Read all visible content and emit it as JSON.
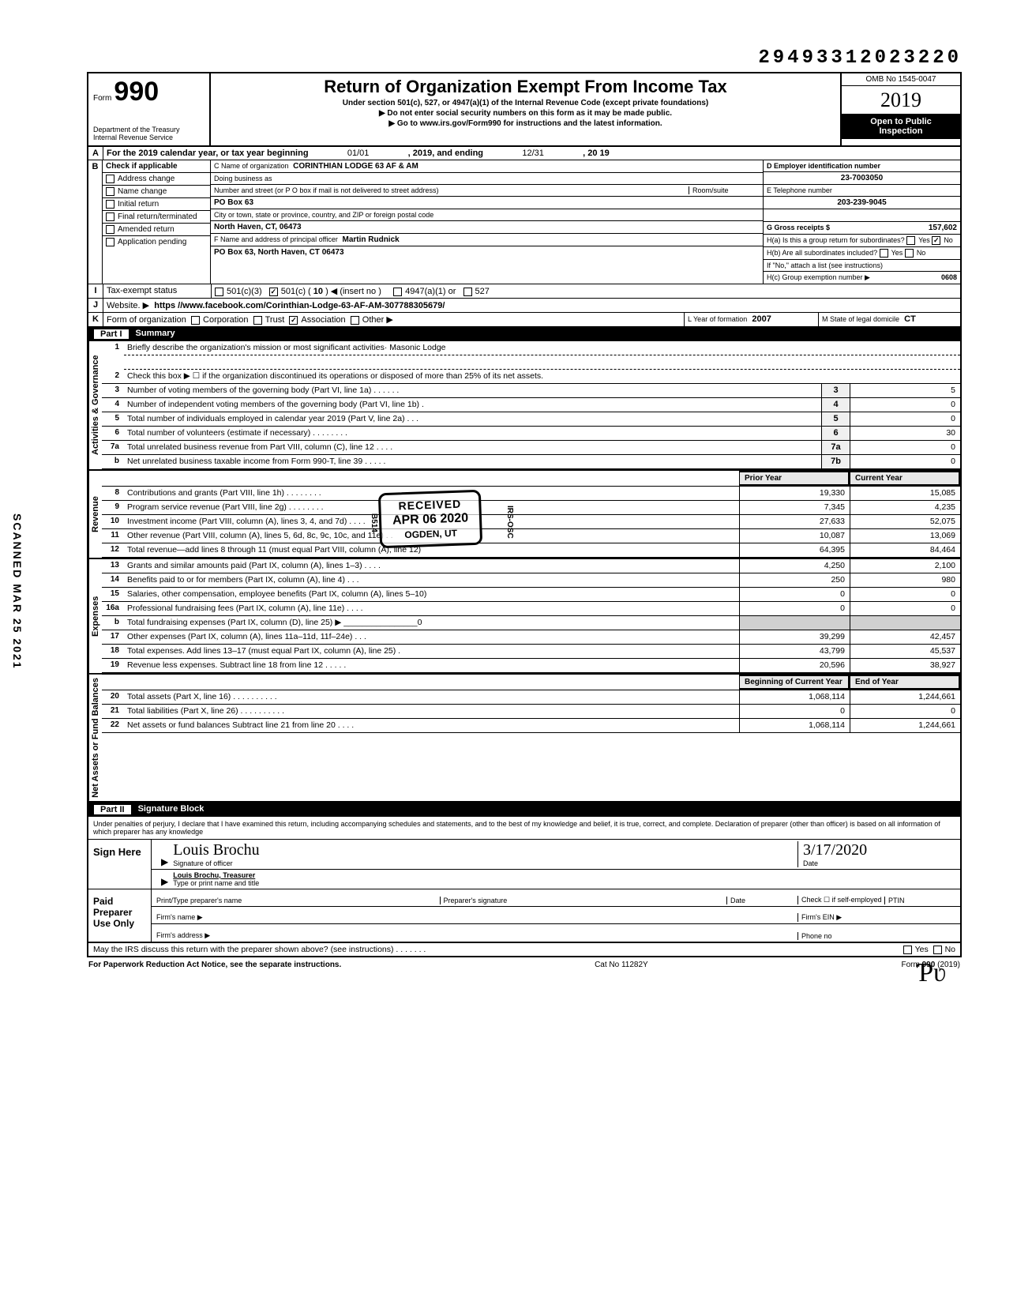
{
  "doc_id": "29493312023220",
  "scanned_stamp": "SCANNED MAR 25 2021",
  "form": {
    "word": "Form",
    "number": "990",
    "dept1": "Department of the Treasury",
    "dept2": "Internal Revenue Service",
    "title": "Return of Organization Exempt From Income Tax",
    "subtitle": "Under section 501(c), 527, or 4947(a)(1) of the Internal Revenue Code (except private foundations)",
    "note1": "▶ Do not enter social security numbers on this form as it may be made public.",
    "note2": "▶ Go to www.irs.gov/Form990 for instructions and the latest information.",
    "omb": "OMB No 1545-0047",
    "year": "2019",
    "open1": "Open to Public",
    "open2": "Inspection"
  },
  "rowA": {
    "label": "A",
    "text": "For the 2019 calendar year, or tax year beginning",
    "begin": "01/01",
    "mid": ", 2019, and ending",
    "end": "12/31",
    "tail": ", 20  19"
  },
  "rowB": {
    "label": "B",
    "hdr": "Check if applicable",
    "opts": [
      "Address change",
      "Name change",
      "Initial return",
      "Final return/terminated",
      "Amended return",
      "Application pending"
    ]
  },
  "blockC": {
    "c_label": "C Name of organization",
    "c_val": "CORINTHIAN LODGE 63 AF & AM",
    "dba": "Doing business as",
    "street_lbl": "Number and street (or P O  box if mail is not delivered to street address)",
    "room_lbl": "Room/suite",
    "street": "PO Box 63",
    "city_lbl": "City or town, state or province, country, and ZIP or foreign postal code",
    "city": "North Haven, CT,  06473",
    "f_lbl": "F Name and address of principal officer",
    "f_name": "Martin Rudnick",
    "f_addr": "PO Box 63, North Haven, CT 06473"
  },
  "blockD": {
    "d_lbl": "D Employer identification number",
    "d_val": "23-7003050",
    "e_lbl": "E Telephone number",
    "e_val": "203-239-9045",
    "g_lbl": "G Gross receipts $",
    "g_val": "157,602",
    "ha_lbl": "H(a) Is this a group return for subordinates?",
    "hb_lbl": "H(b) Are all subordinates included?",
    "h_note": "If \"No,\" attach a list (see instructions)",
    "hc_lbl": "H(c) Group exemption number ▶",
    "hc_val": "0608",
    "yes": "Yes",
    "no": "No"
  },
  "rowI": {
    "label": "I",
    "txt": "Tax-exempt status",
    "o1": "501(c)(3)",
    "o2": "501(c) (",
    "o2n": "10",
    "o2t": ") ◀ (insert no )",
    "o3": "4947(a)(1) or",
    "o4": "527"
  },
  "rowJ": {
    "label": "J",
    "txt": "Website. ▶",
    "val": "https //www.facebook.com/Corinthian-Lodge-63-AF-AM-307788305679/"
  },
  "rowK": {
    "label": "K",
    "txt": "Form of organization",
    "opts": [
      "Corporation",
      "Trust",
      "Association",
      "Other ▶"
    ],
    "checked": 2,
    "l_lbl": "L Year of formation",
    "l_val": "2007",
    "m_lbl": "M State of legal domicile",
    "m_val": "CT"
  },
  "part1": {
    "lbl": "Part I",
    "title": "Summary"
  },
  "sections": [
    {
      "side": "Activities & Governance",
      "rows": [
        {
          "n": "1",
          "t": "Briefly describe the organization's mission or most significant activities·  Masonic Lodge",
          "dashed": true
        },
        {
          "n": "",
          "t": "",
          "dashed": true
        },
        {
          "n": "2",
          "t": "Check this box ▶ ☐ if the organization discontinued its operations or disposed of more than 25% of its net assets."
        },
        {
          "n": "3",
          "t": "Number of voting members of the governing body (Part VI, line 1a)    .    .    .    .    .    .",
          "box": "3",
          "v2": "5"
        },
        {
          "n": "4",
          "t": "Number of independent voting members of the governing body (Part VI, line 1b)    .",
          "box": "4",
          "v2": "0"
        },
        {
          "n": "5",
          "t": "Total number of individuals employed in calendar year 2019 (Part V, line 2a)    .    .    .",
          "box": "5",
          "v2": "0"
        },
        {
          "n": "6",
          "t": "Total number of volunteers (estimate if necessary)    .    .    .    .    .    .    .    .",
          "box": "6",
          "v2": "30"
        },
        {
          "n": "7a",
          "t": "Total unrelated business revenue from Part VIII, column (C), line 12    .    .    .    .",
          "box": "7a",
          "v2": "0"
        },
        {
          "n": "b",
          "t": "Net unrelated business taxable income from Form 990-T, line 39    .    .    .    .    .",
          "box": "7b",
          "v2": "0"
        }
      ]
    },
    {
      "side": "Revenue",
      "hdr": {
        "c1": "Prior Year",
        "c2": "Current Year"
      },
      "rows": [
        {
          "n": "8",
          "t": "Contributions and grants (Part VIII, line 1h)    .    .    .    .    .    .    .    .",
          "v1": "19,330",
          "v2": "15,085"
        },
        {
          "n": "9",
          "t": "Program service revenue (Part VIII, line 2g)    .    .    .    .    .    .    .    .",
          "v1": "7,345",
          "v2": "4,235"
        },
        {
          "n": "10",
          "t": "Investment income (Part VIII, column (A), lines 3, 4, and 7d)    .    .    .    .",
          "v1": "27,633",
          "v2": "52,075"
        },
        {
          "n": "11",
          "t": "Other revenue (Part VIII, column (A), lines 5, 6d, 8c, 9c, 10c, and 11e)    .    .",
          "v1": "10,087",
          "v2": "13,069"
        },
        {
          "n": "12",
          "t": "Total revenue—add lines 8 through 11 (must equal Part VIII, column (A), line 12)",
          "v1": "64,395",
          "v2": "84,464"
        }
      ]
    },
    {
      "side": "Expenses",
      "rows": [
        {
          "n": "13",
          "t": "Grants and similar amounts paid (Part IX, column (A), lines 1–3) .    .    .    .",
          "v1": "4,250",
          "v2": "2,100"
        },
        {
          "n": "14",
          "t": "Benefits paid to or for members (Part IX, column (A), line 4)    .    .    .",
          "v1": "250",
          "v2": "980"
        },
        {
          "n": "15",
          "t": "Salaries, other compensation, employee benefits (Part IX, column (A), lines 5–10)",
          "v1": "0",
          "v2": "0"
        },
        {
          "n": "16a",
          "t": "Professional fundraising fees (Part IX, column (A), line 11e)    .    .    .    .",
          "v1": "0",
          "v2": "0"
        },
        {
          "n": "b",
          "t": "Total fundraising expenses (Part IX, column (D), line 25) ▶  ________________0",
          "v1_shade": true,
          "v2_shade": true
        },
        {
          "n": "17",
          "t": "Other expenses (Part IX, column (A), lines 11a–11d, 11f–24e)    .    .    .",
          "v1": "39,299",
          "v2": "42,457"
        },
        {
          "n": "18",
          "t": "Total expenses. Add lines 13–17 (must equal Part IX, column (A), line 25)    .",
          "v1": "43,799",
          "v2": "45,537"
        },
        {
          "n": "19",
          "t": "Revenue less expenses. Subtract line 18 from line 12   .    .    .    .    .",
          "v1": "20,596",
          "v2": "38,927"
        }
      ]
    },
    {
      "side": "Net Assets or\nFund Balances",
      "hdr": {
        "c1": "Beginning of Current Year",
        "c2": "End of Year"
      },
      "rows": [
        {
          "n": "20",
          "t": "Total assets (Part X, line 16)    .    .    .    .    .    .    .    .    .    .",
          "v1": "1,068,114",
          "v2": "1,244,661"
        },
        {
          "n": "21",
          "t": "Total liabilities (Part X, line 26) .    .    .    .    .    .    .    .    .    .",
          "v1": "0",
          "v2": "0"
        },
        {
          "n": "22",
          "t": "Net assets or fund balances  Subtract line 21 from line 20    .    .    .    .",
          "v1": "1,068,114",
          "v2": "1,244,661"
        }
      ]
    }
  ],
  "part2": {
    "lbl": "Part II",
    "title": "Signature Block"
  },
  "sig": {
    "decl": "Under penalties of perjury, I declare that I have examined this return, including accompanying schedules and statements, and to the best of my knowledge and belief, it is true, correct, and complete. Declaration of preparer (other than officer) is based on all information of which preparer has any knowledge",
    "sign_here": "Sign Here",
    "sig_cursive": "Louis Brochu",
    "sig_lbl": "Signature of officer",
    "date_lbl": "Date",
    "date_val": "3/17/2020",
    "name": "Louis Brochu, Treasurer",
    "name_lbl": "Type or print name and title",
    "paid": "Paid Preparer Use Only",
    "p1": "Print/Type preparer's name",
    "p2": "Preparer's signature",
    "p3": "Date",
    "p4": "Check ☐ if self-employed",
    "p5": "PTIN",
    "firm_name": "Firm's name    ▶",
    "firm_ein": "Firm's EIN ▶",
    "firm_addr": "Firm's address ▶",
    "phone": "Phone no"
  },
  "discuss": {
    "txt": "May the IRS discuss this return with the preparer shown above? (see instructions)    .    .    .    .    .    .    .",
    "yes": "Yes",
    "no": "No"
  },
  "foot": {
    "left": "For Paperwork Reduction Act Notice, see the separate instructions.",
    "mid": "Cat No 11282Y",
    "right": "Form 990 (2019)"
  },
  "stamp": {
    "s1": "RECEIVED",
    "s2": "APR 06 2020",
    "s3": "OGDEN, UT"
  },
  "irs_side": {
    "a": "B514",
    "b": "IRS-OSC"
  },
  "initials": "Ƥʋ",
  "colors": {
    "bg": "#ffffff",
    "ink": "#000000",
    "shade": "#d0d0d0"
  }
}
